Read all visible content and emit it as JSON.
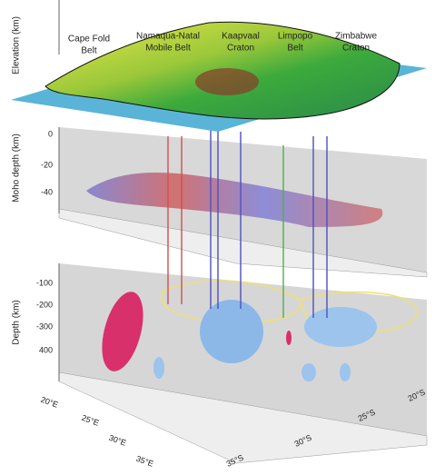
{
  "panels": {
    "elevation": {
      "axis_label": "Elevation (km)"
    },
    "moho": {
      "axis_label": "Moho depth (km)",
      "ticks": [
        "0",
        "-20",
        "-40"
      ]
    },
    "depth": {
      "axis_label": "Depth (km)",
      "ticks": [
        "-100",
        "-200",
        "-300",
        "400"
      ]
    }
  },
  "regions": [
    {
      "lines": [
        "Cape Fold",
        "Belt"
      ]
    },
    {
      "lines": [
        "Namaqua-Natal",
        "Mobile Belt"
      ]
    },
    {
      "lines": [
        "Kaapvaal",
        "Craton"
      ]
    },
    {
      "lines": [
        "Limpopo",
        "Belt"
      ]
    },
    {
      "lines": [
        "Zimbabwe",
        "Craton"
      ]
    }
  ],
  "longitudes": [
    "20°E",
    "25°E",
    "30°E",
    "35°E"
  ],
  "latitudes": [
    "20°S",
    "25°S",
    "30°S",
    "35°S"
  ]
}
